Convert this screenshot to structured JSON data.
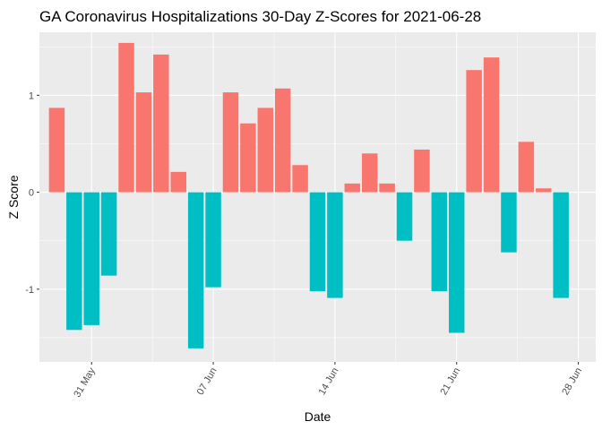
{
  "chart_data": {
    "type": "bar",
    "title": "GA Coronavirus Hospitalizations 30-Day Z-Scores for 2021-06-28",
    "xlabel": "Date",
    "ylabel": "Z Score",
    "ylim": [
      -1.75,
      1.65
    ],
    "xlim": [
      "2021-05-28",
      "2021-06-29"
    ],
    "grid": true,
    "legend": "none",
    "x_ticks": [
      {
        "date": "2021-05-31",
        "label": "31 May"
      },
      {
        "date": "2021-06-07",
        "label": "07 Jun"
      },
      {
        "date": "2021-06-14",
        "label": "14 Jun"
      },
      {
        "date": "2021-06-21",
        "label": "21 Jun"
      },
      {
        "date": "2021-06-28",
        "label": "28 Jun"
      }
    ],
    "y_ticks": [
      {
        "value": -1,
        "label": "-1"
      },
      {
        "value": 0,
        "label": "0"
      },
      {
        "value": 1,
        "label": "1"
      }
    ],
    "colors": {
      "positive": "#F8766D",
      "negative": "#00BFC4",
      "panel": "#EBEBEB",
      "grid": "#FFFFFF"
    },
    "x": [
      "2021-05-29",
      "2021-05-30",
      "2021-05-31",
      "2021-06-01",
      "2021-06-02",
      "2021-06-03",
      "2021-06-04",
      "2021-06-05",
      "2021-06-06",
      "2021-06-07",
      "2021-06-08",
      "2021-06-09",
      "2021-06-10",
      "2021-06-11",
      "2021-06-12",
      "2021-06-13",
      "2021-06-14",
      "2021-06-15",
      "2021-06-16",
      "2021-06-17",
      "2021-06-18",
      "2021-06-19",
      "2021-06-20",
      "2021-06-21",
      "2021-06-22",
      "2021-06-23",
      "2021-06-24",
      "2021-06-25",
      "2021-06-26",
      "2021-06-27",
      "2021-06-28"
    ],
    "values": [
      0.87,
      -1.42,
      -1.37,
      -0.86,
      1.54,
      1.03,
      1.42,
      0.21,
      -1.61,
      -0.98,
      1.03,
      0.71,
      0.87,
      1.07,
      0.28,
      -1.02,
      -1.09,
      0.09,
      0.4,
      0.09,
      -0.5,
      0.44,
      -1.02,
      -1.45,
      1.26,
      1.39,
      -0.62,
      0.52,
      0.04,
      -1.09,
      0.0
    ]
  }
}
